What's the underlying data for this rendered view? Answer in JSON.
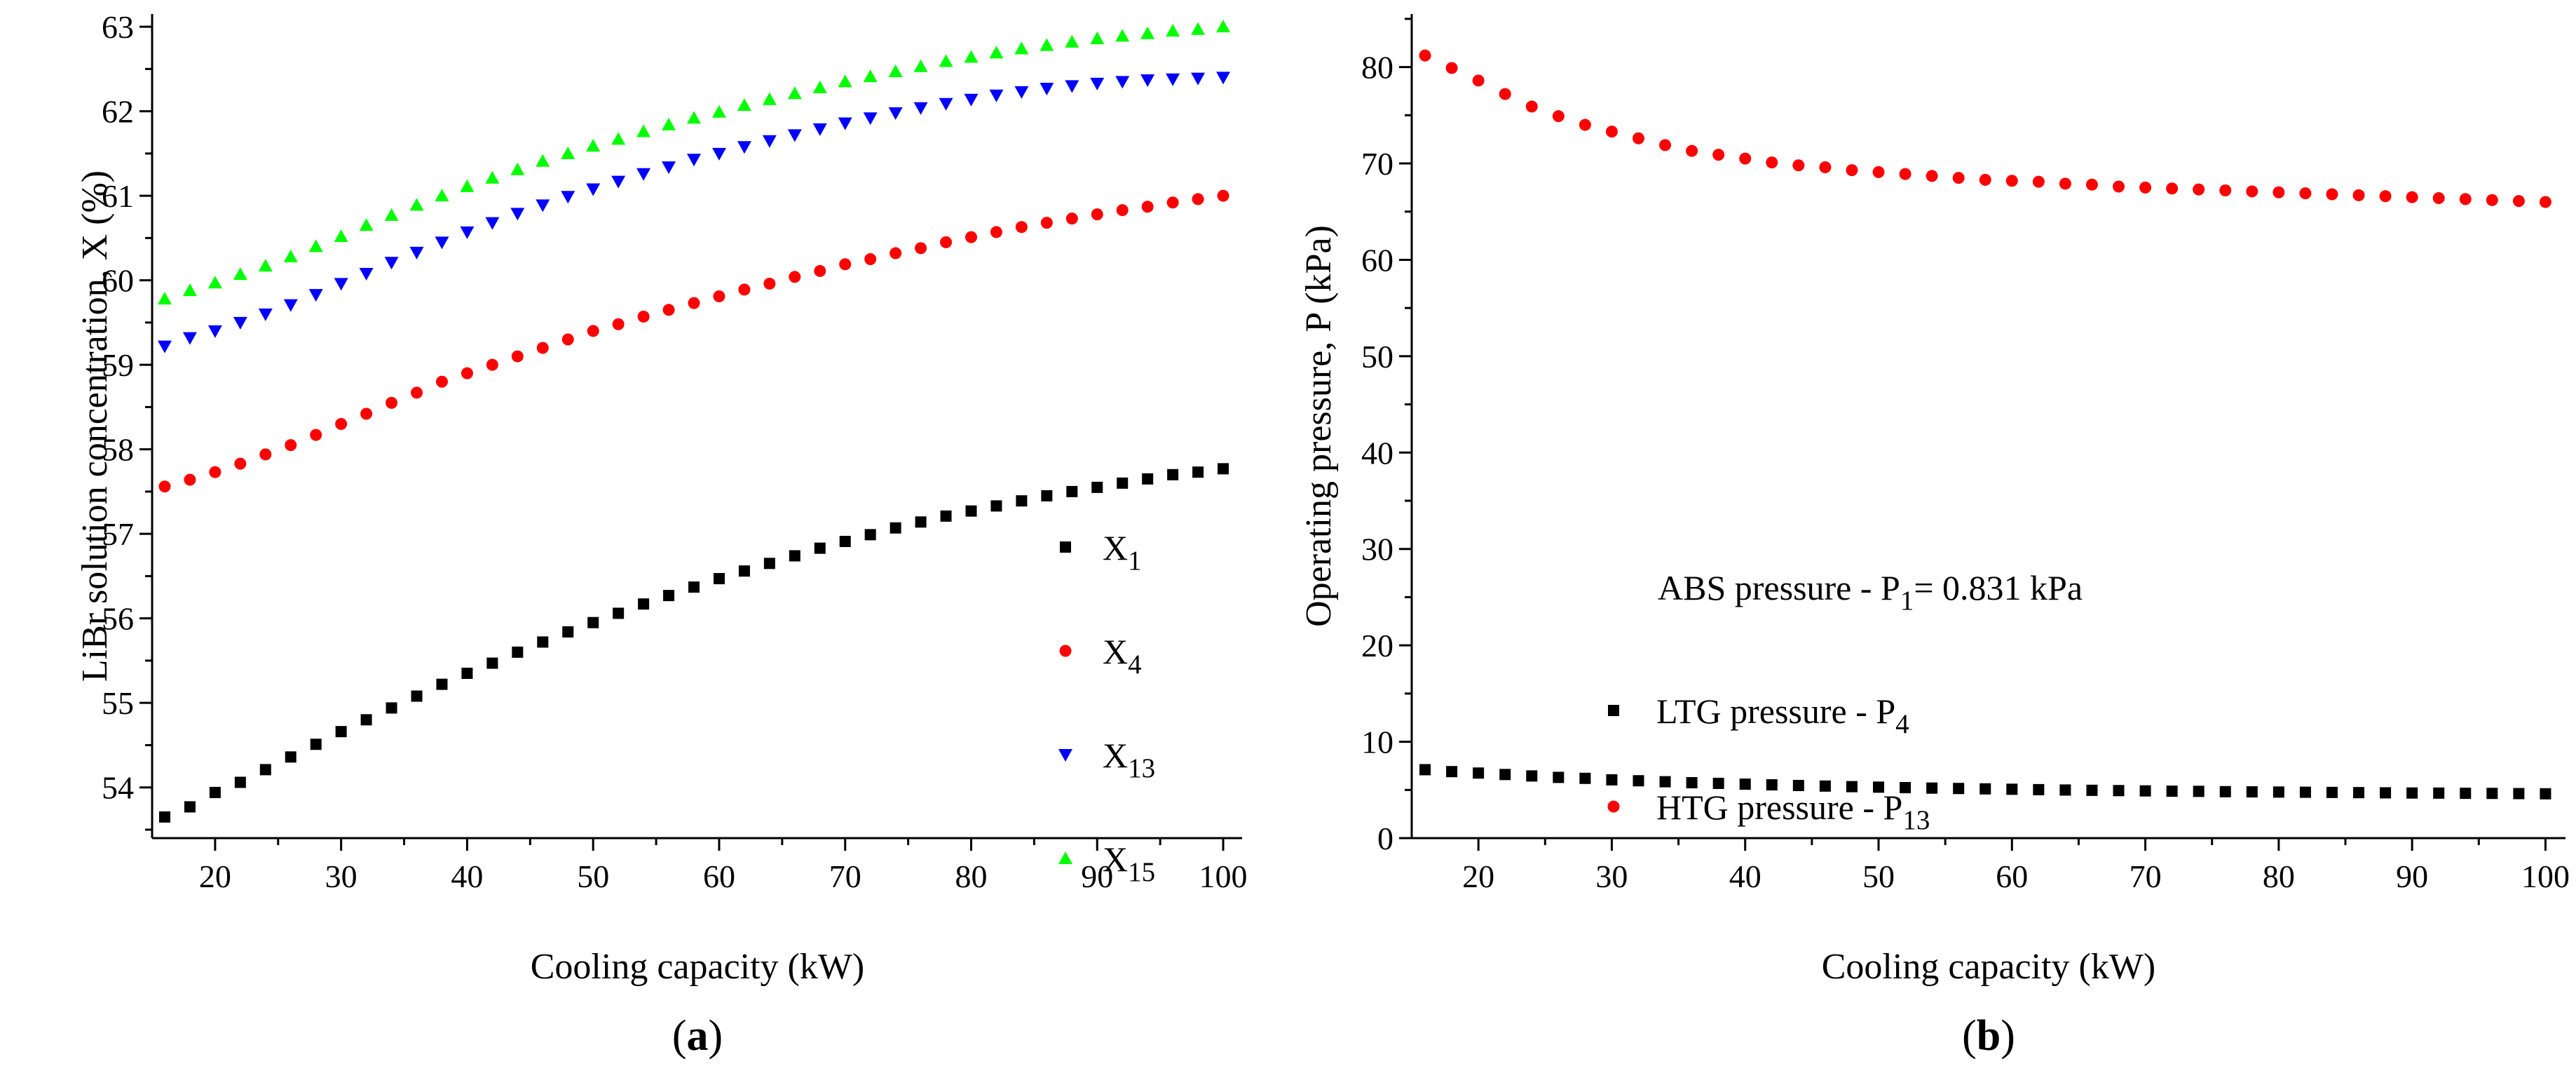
{
  "chart_data": [
    {
      "type": "scatter",
      "panel_label": "(a)",
      "xlabel": "Cooling capacity (kW)",
      "ylabel": "LiBr solution concentration, X (%)",
      "xlim": [
        15,
        101.5
      ],
      "ylim": [
        53.4,
        63.15
      ],
      "xticks": [
        20,
        30,
        40,
        50,
        60,
        70,
        80,
        90,
        100
      ],
      "yticks": [
        54,
        55,
        56,
        57,
        58,
        59,
        60,
        61,
        62,
        63
      ],
      "grid": false,
      "legend_position": "bottom-right",
      "x": [
        16,
        18,
        20,
        22,
        24,
        26,
        28,
        30,
        32,
        34,
        36,
        38,
        40,
        42,
        44,
        46,
        48,
        50,
        52,
        54,
        56,
        58,
        60,
        62,
        64,
        66,
        68,
        70,
        72,
        74,
        76,
        78,
        80,
        82,
        84,
        86,
        88,
        90,
        92,
        94,
        96,
        98,
        100
      ],
      "series": [
        {
          "name": "X",
          "subscript": "1",
          "marker": "square",
          "color": "#000000",
          "values": [
            53.65,
            53.77,
            53.94,
            54.06,
            54.21,
            54.36,
            54.51,
            54.66,
            54.8,
            54.94,
            55.08,
            55.22,
            55.35,
            55.47,
            55.6,
            55.72,
            55.84,
            55.95,
            56.06,
            56.17,
            56.27,
            56.37,
            56.47,
            56.56,
            56.65,
            56.74,
            56.83,
            56.91,
            56.99,
            57.07,
            57.14,
            57.21,
            57.27,
            57.33,
            57.39,
            57.45,
            57.5,
            57.55,
            57.6,
            57.65,
            57.7,
            57.73,
            57.77
          ]
        },
        {
          "name": "X",
          "subscript": "4",
          "marker": "circle",
          "color": "#ff0000",
          "values": [
            57.56,
            57.64,
            57.73,
            57.83,
            57.94,
            58.05,
            58.17,
            58.3,
            58.42,
            58.55,
            58.67,
            58.8,
            58.9,
            59.0,
            59.1,
            59.2,
            59.3,
            59.4,
            59.48,
            59.57,
            59.65,
            59.73,
            59.81,
            59.89,
            59.96,
            60.04,
            60.11,
            60.19,
            60.25,
            60.32,
            60.38,
            60.45,
            60.51,
            60.57,
            60.63,
            60.68,
            60.73,
            60.78,
            60.83,
            60.87,
            60.92,
            60.96,
            61.0
          ]
        },
        {
          "name": "X",
          "subscript": "13",
          "marker": "triangle-down",
          "color": "#0000ff",
          "values": [
            59.22,
            59.32,
            59.4,
            59.5,
            59.6,
            59.71,
            59.83,
            59.96,
            60.08,
            60.21,
            60.33,
            60.45,
            60.57,
            60.68,
            60.79,
            60.89,
            60.99,
            61.08,
            61.17,
            61.26,
            61.34,
            61.43,
            61.5,
            61.58,
            61.65,
            61.72,
            61.79,
            61.86,
            61.92,
            61.98,
            62.04,
            62.09,
            62.14,
            62.19,
            62.23,
            62.27,
            62.3,
            62.33,
            62.35,
            62.37,
            62.38,
            62.39,
            62.4
          ]
        },
        {
          "name": "X",
          "subscript": "15",
          "marker": "triangle-up",
          "color": "#00ff00",
          "values": [
            59.78,
            59.88,
            59.97,
            60.07,
            60.17,
            60.28,
            60.4,
            60.52,
            60.65,
            60.77,
            60.89,
            61.0,
            61.11,
            61.21,
            61.31,
            61.41,
            61.5,
            61.59,
            61.67,
            61.76,
            61.84,
            61.92,
            61.99,
            62.07,
            62.14,
            62.21,
            62.28,
            62.35,
            62.41,
            62.47,
            62.53,
            62.59,
            62.64,
            62.69,
            62.74,
            62.78,
            62.82,
            62.86,
            62.89,
            62.92,
            62.95,
            62.97,
            63.0
          ]
        }
      ]
    },
    {
      "type": "scatter",
      "panel_label": "(b)",
      "xlabel": "Cooling capacity (kW)",
      "ylabel": "Operating pressure, P (kPa)",
      "xlim": [
        15,
        101.5
      ],
      "ylim": [
        0,
        85.5
      ],
      "xticks": [
        20,
        30,
        40,
        50,
        60,
        70,
        80,
        90,
        100
      ],
      "yticks": [
        0,
        10,
        20,
        30,
        40,
        50,
        60,
        70,
        80
      ],
      "grid": false,
      "legend_position": "middle-left",
      "annotation": {
        "text": "ABS pressure - P",
        "subscript": "1",
        "suffix": "= 0.831 kPa"
      },
      "x": [
        16,
        18,
        20,
        22,
        24,
        26,
        28,
        30,
        32,
        34,
        36,
        38,
        40,
        42,
        44,
        46,
        48,
        50,
        52,
        54,
        56,
        58,
        60,
        62,
        64,
        66,
        68,
        70,
        72,
        74,
        76,
        78,
        80,
        82,
        84,
        86,
        88,
        90,
        92,
        94,
        96,
        98,
        100
      ],
      "series": [
        {
          "name": "LTG pressure - P",
          "subscript": "4",
          "marker": "square",
          "color": "#000000",
          "values": [
            7.1,
            6.9,
            6.75,
            6.6,
            6.45,
            6.3,
            6.2,
            6.05,
            5.95,
            5.85,
            5.75,
            5.68,
            5.6,
            5.53,
            5.46,
            5.4,
            5.34,
            5.29,
            5.24,
            5.19,
            5.15,
            5.11,
            5.07,
            5.03,
            4.99,
            4.96,
            4.93,
            4.9,
            4.87,
            4.85,
            4.82,
            4.8,
            4.78,
            4.76,
            4.74,
            4.72,
            4.7,
            4.68,
            4.67,
            4.65,
            4.64,
            4.62,
            4.6
          ]
        },
        {
          "name": "HTG pressure - P",
          "subscript": "13",
          "marker": "circle",
          "color": "#ff0000",
          "values": [
            81.2,
            79.9,
            78.6,
            77.2,
            75.9,
            74.9,
            74.0,
            73.3,
            72.6,
            71.9,
            71.3,
            70.9,
            70.5,
            70.1,
            69.8,
            69.6,
            69.3,
            69.1,
            68.9,
            68.7,
            68.5,
            68.3,
            68.2,
            68.1,
            67.9,
            67.8,
            67.6,
            67.5,
            67.4,
            67.3,
            67.2,
            67.1,
            67.0,
            66.9,
            66.8,
            66.7,
            66.6,
            66.5,
            66.4,
            66.3,
            66.2,
            66.1,
            66.0
          ]
        }
      ]
    }
  ]
}
